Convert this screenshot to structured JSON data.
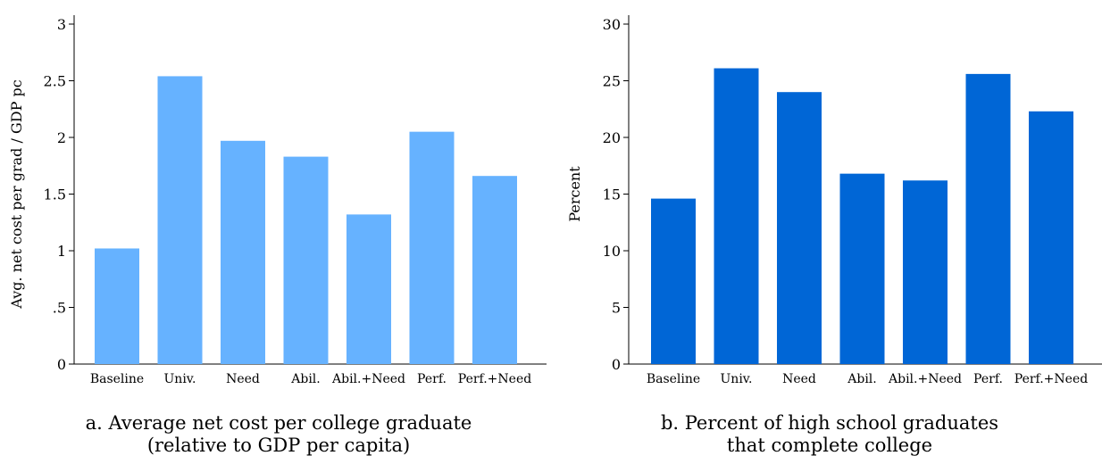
{
  "chart_data": [
    {
      "type": "bar",
      "caption": [
        "a. Average net cost per college graduate",
        "(relative to GDP per capita)"
      ],
      "ylabel": "Avg. net cost per grad / GDP pc",
      "categories": [
        "Baseline",
        "Univ.",
        "Need",
        "Abil.",
        "Abil.+Need",
        "Perf.",
        "Perf.+Need"
      ],
      "values": [
        1.02,
        2.54,
        1.97,
        1.83,
        1.32,
        2.05,
        1.66
      ],
      "ylim": [
        0,
        3
      ],
      "yticks": [
        0,
        0.5,
        1,
        1.5,
        2,
        2.5,
        3
      ],
      "ytick_labels": [
        "0",
        ".5",
        "1",
        "1.5",
        "2",
        "2.5",
        "3"
      ],
      "color": "#66b2ff",
      "grid": false
    },
    {
      "type": "bar",
      "caption": [
        "b. Percent of high school graduates",
        "that complete college"
      ],
      "ylabel": "Percent",
      "categories": [
        "Baseline",
        "Univ.",
        "Need",
        "Abil.",
        "Abil.+Need",
        "Perf.",
        "Perf.+Need"
      ],
      "values": [
        14.6,
        26.1,
        24.0,
        16.8,
        16.2,
        25.6,
        22.3
      ],
      "ylim": [
        0,
        30
      ],
      "yticks": [
        0,
        5,
        10,
        15,
        20,
        25,
        30
      ],
      "ytick_labels": [
        "0",
        "5",
        "10",
        "15",
        "20",
        "25",
        "30"
      ],
      "color": "#0066d6",
      "grid": false
    }
  ]
}
